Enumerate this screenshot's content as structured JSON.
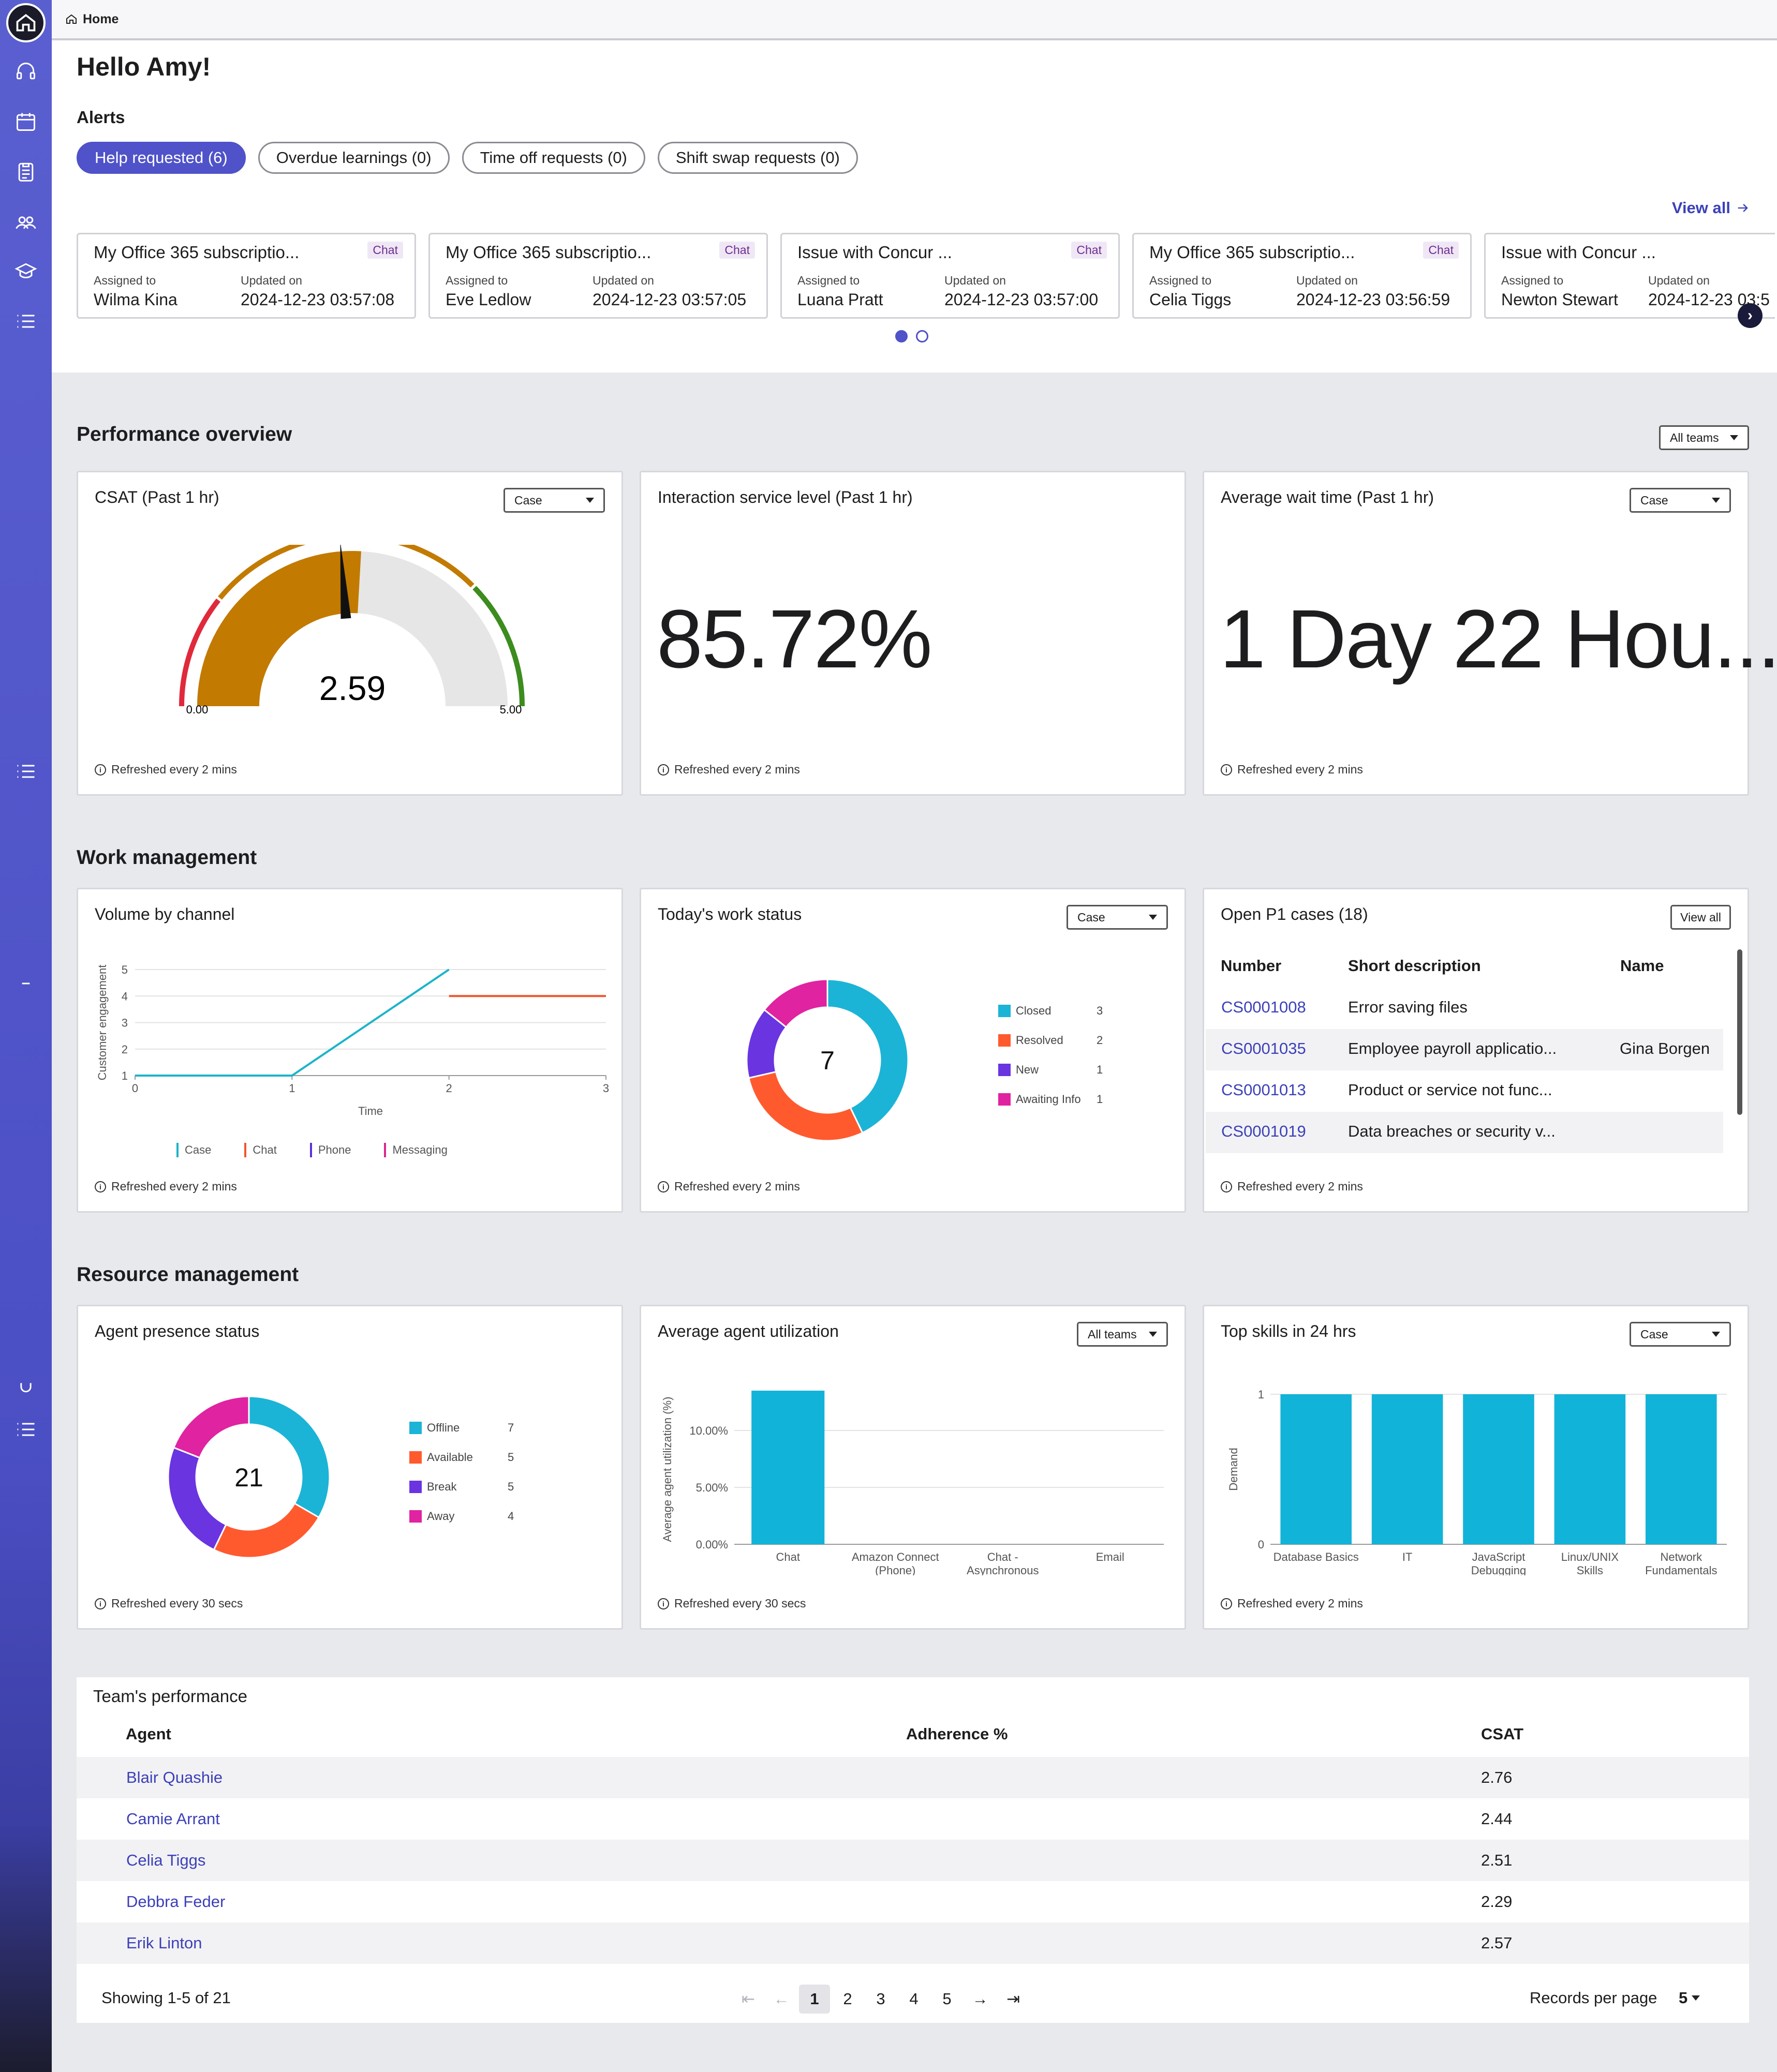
{
  "breadcrumb": {
    "label": "Home"
  },
  "greeting": "Hello Amy!",
  "alerts": {
    "label": "Alerts",
    "pills": [
      {
        "label": "Help requested (6)"
      },
      {
        "label": "Overdue learnings (0)"
      },
      {
        "label": "Time off requests (0)"
      },
      {
        "label": "Shift swap requests (0)"
      }
    ],
    "view_all": "View all",
    "cards": [
      {
        "title": "My Office 365 subscriptio...",
        "tag": "Chat",
        "assigned_label": "Assigned to",
        "assigned": "Wilma Kina",
        "updated_label": "Updated on",
        "updated": "2024-12-23 03:57:08"
      },
      {
        "title": "My Office 365 subscriptio...",
        "tag": "Chat",
        "assigned_label": "Assigned to",
        "assigned": "Eve Ledlow",
        "updated_label": "Updated on",
        "updated": "2024-12-23 03:57:05"
      },
      {
        "title": "Issue with Concur ...",
        "tag": "Chat",
        "assigned_label": "Assigned to",
        "assigned": "Luana Pratt",
        "updated_label": "Updated on",
        "updated": "2024-12-23 03:57:00"
      },
      {
        "title": "My Office 365 subscriptio...",
        "tag": "Chat",
        "assigned_label": "Assigned to",
        "assigned": "Celia Tiggs",
        "updated_label": "Updated on",
        "updated": "2024-12-23 03:56:59"
      },
      {
        "title": "Issue with Concur ...",
        "tag": "",
        "assigned_label": "Assigned to",
        "assigned": "Newton Stewart",
        "updated_label": "Updated on",
        "updated": "2024-12-23 03:5"
      }
    ],
    "carousel_page": 1,
    "carousel_pages": 2
  },
  "performance": {
    "title": "Performance overview",
    "filter": "All teams",
    "csat": {
      "title": "CSAT (Past 1 hr)",
      "filter": "Case",
      "value": "2.59",
      "min": "0.00",
      "max": "5.00",
      "refresh": "Refreshed every 2 mins"
    },
    "service_level": {
      "title": "Interaction service level (Past 1 hr)",
      "value": "85.72%",
      "refresh": "Refreshed every 2 mins"
    },
    "wait_time": {
      "title": "Average wait time (Past 1 hr)",
      "filter": "Case",
      "value": "1 Day 22 Hou...",
      "refresh": "Refreshed every 2 mins"
    }
  },
  "work": {
    "title": "Work management",
    "volume": {
      "title": "Volume by channel",
      "xlabel": "Time",
      "ylabel": "Customer engagement",
      "refresh": "Refreshed every 2 mins",
      "legend": [
        {
          "name": "Case",
          "color": "#1bb4c8"
        },
        {
          "name": "Chat",
          "color": "#f0562e"
        },
        {
          "name": "Phone",
          "color": "#5b2fd6"
        },
        {
          "name": "Messaging",
          "color": "#d6288f"
        }
      ]
    },
    "status": {
      "title": "Today's work status",
      "filter": "Case",
      "total": "7",
      "refresh": "Refreshed every 2 mins"
    },
    "p1": {
      "title": "Open P1 cases (18)",
      "view_all": "View all",
      "refresh": "Refreshed every 2 mins",
      "headers": {
        "number": "Number",
        "desc": "Short description",
        "name": "Name"
      },
      "rows": [
        {
          "number": "CS0001008",
          "desc": "Error saving files",
          "name": ""
        },
        {
          "number": "CS0001035",
          "desc": "Employee payroll applicatio...",
          "name": "Gina Borgen"
        },
        {
          "number": "CS0001013",
          "desc": "Product or service not func...",
          "name": ""
        },
        {
          "number": "CS0001019",
          "desc": "Data breaches or security v...",
          "name": ""
        }
      ]
    }
  },
  "resource": {
    "title": "Resource management",
    "presence": {
      "title": "Agent presence status",
      "total": "21",
      "refresh": "Refreshed every 30 secs"
    },
    "utilization": {
      "title": "Average agent utilization",
      "filter": "All teams",
      "ylabel": "Average agent utilization (%)",
      "refresh": "Refreshed every 30 secs"
    },
    "skills": {
      "title": "Top skills in 24 hrs",
      "filter": "Case",
      "ylabel": "Demand",
      "refresh": "Refreshed every 2 mins"
    }
  },
  "team": {
    "title": "Team's performance",
    "headers": {
      "agent": "Agent",
      "adherence": "Adherence %",
      "csat": "CSAT"
    },
    "rows": [
      {
        "agent": "Blair Quashie",
        "csat": "2.76"
      },
      {
        "agent": "Camie Arrant",
        "csat": "2.44"
      },
      {
        "agent": "Celia Tiggs",
        "csat": "2.51"
      },
      {
        "agent": "Debbra Feder",
        "csat": "2.29"
      },
      {
        "agent": "Erik Linton",
        "csat": "2.57"
      }
    ],
    "showing": "Showing 1-5 of 21",
    "pages": [
      "1",
      "2",
      "3",
      "4",
      "5"
    ],
    "records_label": "Records per page",
    "records_value": "5"
  },
  "chart_data": [
    {
      "type": "gauge",
      "title": "CSAT (Past 1 hr)",
      "value": 2.59,
      "min": 0,
      "max": 5
    },
    {
      "type": "line",
      "title": "Volume by channel",
      "xlabel": "Time",
      "ylabel": "Customer engagement",
      "xlim": [
        0,
        3
      ],
      "ylim": [
        0,
        5
      ],
      "x_ticks": [
        "0",
        "1",
        "2",
        "3"
      ],
      "y_ticks": [
        "1",
        "2",
        "3",
        "4",
        "5"
      ],
      "series": [
        {
          "name": "Case",
          "color": "#1bb4c8",
          "points": [
            [
              0,
              1
            ],
            [
              1,
              1
            ],
            [
              2,
              5
            ]
          ]
        },
        {
          "name": "Chat",
          "color": "#f0562e",
          "points": [
            [
              2,
              4
            ],
            [
              3,
              4
            ]
          ]
        }
      ]
    },
    {
      "type": "pie",
      "title": "Today's work status",
      "series": [
        {
          "name": "Closed",
          "value": 3,
          "color": "#1bb4d6"
        },
        {
          "name": "Resolved",
          "value": 2,
          "color": "#ff5a2e"
        },
        {
          "name": "New",
          "value": 1,
          "color": "#6a34e0"
        },
        {
          "name": "Awaiting Info",
          "value": 1,
          "color": "#e023a0"
        }
      ]
    },
    {
      "type": "pie",
      "title": "Agent presence status",
      "series": [
        {
          "name": "Offline",
          "value": 7,
          "color": "#1bb4d6"
        },
        {
          "name": "Available",
          "value": 5,
          "color": "#ff5a2e"
        },
        {
          "name": "Break",
          "value": 5,
          "color": "#6a34e0"
        },
        {
          "name": "Away",
          "value": 4,
          "color": "#e023a0"
        }
      ]
    },
    {
      "type": "bar",
      "title": "Average agent utilization",
      "ylabel": "Average agent utilization (%)",
      "categories": [
        "Chat",
        "Amazon Connect (Phone)",
        "Chat - Asynchronous",
        "Email"
      ],
      "values": [
        13.5,
        0,
        0,
        0
      ],
      "y_ticks": [
        "0.00%",
        "5.00%",
        "10.00%"
      ],
      "ylim": [
        0,
        13.5
      ],
      "color": "#12b3d8"
    },
    {
      "type": "bar",
      "title": "Top skills in 24 hrs",
      "ylabel": "Demand",
      "categories": [
        "Database Basics",
        "IT",
        "JavaScript Debugging",
        "Linux/UNIX Skills",
        "Network Fundamentals"
      ],
      "values": [
        1,
        1,
        1,
        1,
        1
      ],
      "y_ticks": [
        "0",
        "1"
      ],
      "ylim": [
        0,
        1
      ],
      "color": "#12b3d8"
    }
  ]
}
